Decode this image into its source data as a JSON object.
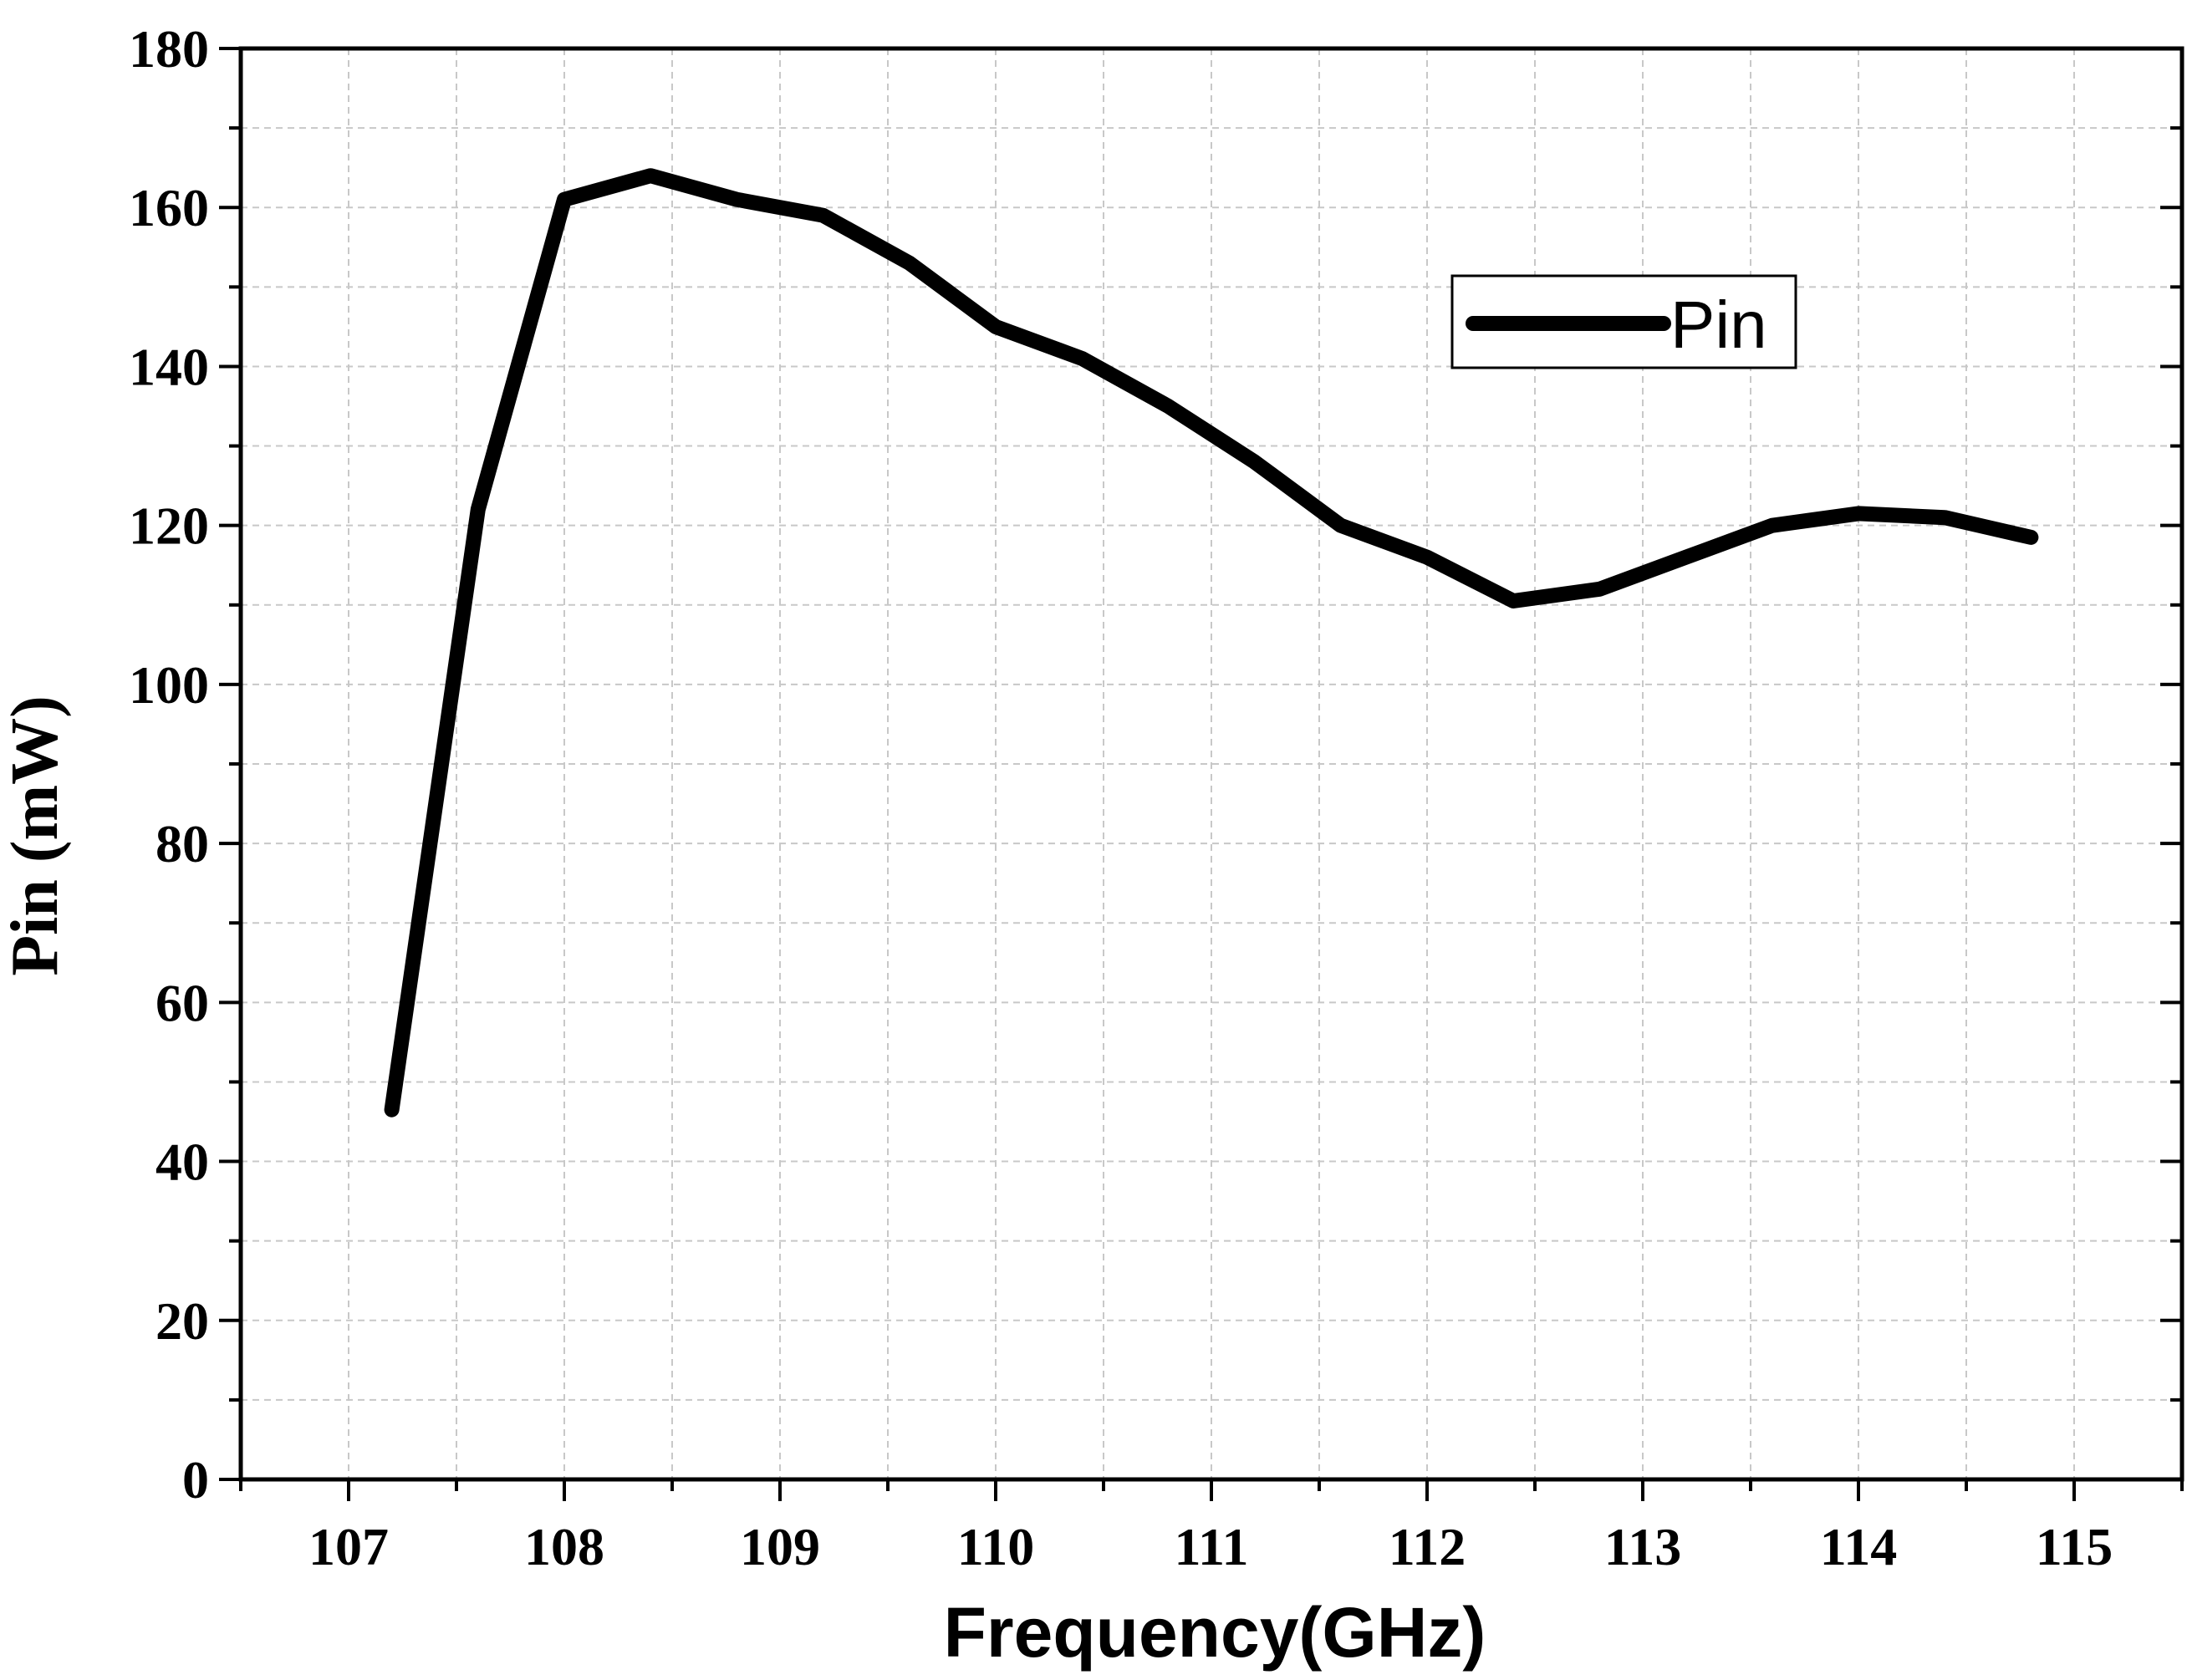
{
  "chart_data": {
    "type": "line",
    "xlabel": "Frequency(GHz)",
    "ylabel": "Pin (mW)",
    "xlim": [
      106.5,
      115.5
    ],
    "ylim": [
      0,
      180
    ],
    "xticks": [
      107,
      108,
      109,
      110,
      111,
      112,
      113,
      114,
      115
    ],
    "xtick_labels": [
      "107",
      "108",
      "109",
      "110",
      "111",
      "112",
      "113",
      "114",
      "115"
    ],
    "yticks": [
      0,
      20,
      40,
      60,
      80,
      100,
      120,
      140,
      160,
      180
    ],
    "ytick_labels": [
      "0",
      "20",
      "40",
      "60",
      "80",
      "100",
      "120",
      "140",
      "160",
      "180"
    ],
    "grid": true,
    "legend_position": "top-right",
    "series": [
      {
        "name": "Pin",
        "color": "#000000",
        "x": [
          107.2,
          107.6,
          108.0,
          108.4,
          108.8,
          109.2,
          109.6,
          110.0,
          110.4,
          110.8,
          111.2,
          111.6,
          112.0,
          112.4,
          112.8,
          113.2,
          113.6,
          114.0,
          114.4,
          114.8
        ],
        "y": [
          46.5,
          122,
          161,
          164,
          161,
          159,
          153,
          145,
          141,
          135,
          128,
          120,
          116,
          110.5,
          112,
          116,
          120,
          121.5,
          121,
          118.5
        ]
      }
    ]
  }
}
